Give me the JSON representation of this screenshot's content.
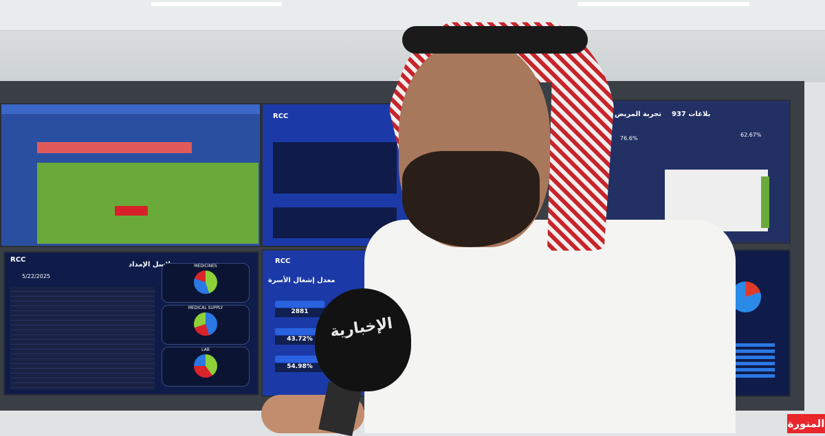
{
  "scene": {
    "description_colors": {
      "screen_blue": "#1b3aa8",
      "badge_red": "#e8262c"
    }
  },
  "screens": {
    "top_center": {
      "logo": "RCC"
    },
    "top_right": {
      "title": "تجربة المريض",
      "reports": "بلاغات 937",
      "gauge": "76.6%",
      "kpi": "62.67%"
    },
    "bottom_left": {
      "logo": "RCC",
      "title": "سلاسل الإمداد",
      "date": "5/22/2025",
      "charts": [
        "MEDICINES",
        "MEDICAL SUPPLY",
        "LAB"
      ]
    },
    "bottom_center": {
      "logo": "RCC",
      "title": "معدل إشغال الأسرة",
      "kpis": [
        {
          "value": "2881"
        },
        {
          "value": "43.72%"
        },
        {
          "value": "54.98%"
        }
      ]
    }
  },
  "microphone": {
    "label": "الإخبارية"
  },
  "ticker": {
    "label": "المنورة"
  }
}
